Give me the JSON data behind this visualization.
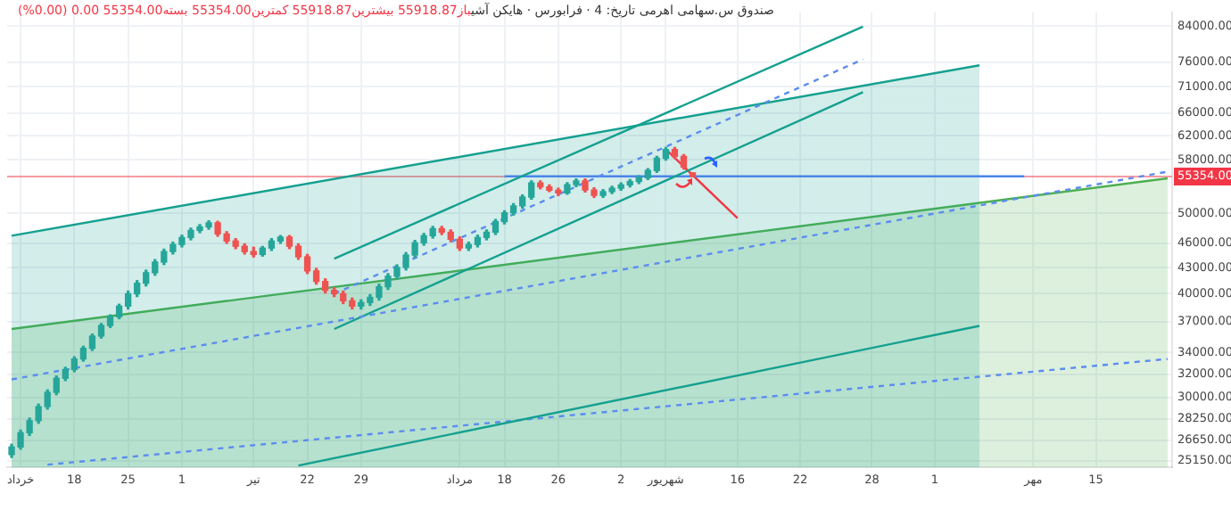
{
  "chart_data": {
    "type": "candlestick",
    "title": "صندوق س.سهامی اهرمی تاریخ: 4 · فرابورس · هایکن آشی",
    "subtitle": "باز55918.87 بیشترین55918.87 کمترین55354.00 بسته55354.00 0.00 (0.00%)",
    "categories": [
      null,
      "خرداد",
      null,
      null,
      null,
      null,
      null,
      "18",
      null,
      null,
      null,
      null,
      null,
      "25",
      null,
      null,
      null,
      null,
      null,
      "1",
      null,
      null,
      null,
      null,
      null,
      null,
      null,
      "تیر",
      null,
      null,
      null,
      null,
      null,
      "22",
      null,
      null,
      null,
      null,
      null,
      "29",
      null,
      null,
      null,
      null,
      null,
      null,
      null,
      null,
      null,
      null,
      "مرداد",
      null,
      null,
      null,
      null,
      "18",
      null,
      null,
      null,
      null,
      null,
      "26",
      null,
      null,
      null,
      null,
      null,
      null,
      "2",
      null,
      null,
      null,
      null,
      "شهریور",
      null,
      null,
      null,
      null,
      null,
      null,
      null,
      "16",
      null,
      null,
      null,
      null,
      null,
      null,
      "22",
      null,
      null,
      null,
      null,
      null,
      null,
      null,
      "28",
      null,
      null,
      null,
      null,
      null,
      null,
      "1",
      null,
      null,
      null,
      null,
      null,
      null,
      null,
      null,
      null,
      null,
      "مهر",
      null,
      null,
      null,
      null,
      null,
      null,
      "15",
      null,
      null,
      null,
      null,
      null,
      null,
      null,
      null
    ],
    "ohlc": [
      [
        25600,
        26350,
        25400,
        26150
      ],
      [
        26150,
        27400,
        26000,
        27200
      ],
      [
        27200,
        28330,
        27000,
        28130
      ],
      [
        28130,
        29450,
        27930,
        29250
      ],
      [
        29250,
        30630,
        29050,
        30430
      ],
      [
        30430,
        31840,
        30230,
        31640
      ],
      [
        31640,
        32620,
        31440,
        32420
      ],
      [
        32420,
        33580,
        32220,
        33380
      ],
      [
        33380,
        34580,
        33180,
        34380
      ],
      [
        34380,
        35770,
        34180,
        35570
      ],
      [
        35570,
        36830,
        35370,
        36630
      ],
      [
        36630,
        37720,
        36430,
        37520
      ],
      [
        37520,
        38850,
        37320,
        38650
      ],
      [
        38650,
        40290,
        38350,
        39990
      ],
      [
        39990,
        41480,
        39690,
        41180
      ],
      [
        41180,
        42700,
        40880,
        42400
      ],
      [
        42400,
        43970,
        42100,
        43670
      ],
      [
        43670,
        45260,
        43370,
        44960
      ],
      [
        44960,
        46150,
        44660,
        45850
      ],
      [
        45850,
        47050,
        45550,
        46750
      ],
      [
        46750,
        47980,
        46450,
        47680
      ],
      [
        47680,
        48440,
        47380,
        48140
      ],
      [
        48140,
        48970,
        47840,
        48700
      ],
      [
        48700,
        48900,
        46910,
        47210
      ],
      [
        47210,
        47510,
        46000,
        46300
      ],
      [
        46300,
        46600,
        45330,
        45630
      ],
      [
        45630,
        45930,
        44660,
        44960
      ],
      [
        44960,
        45500,
        44300,
        44600
      ],
      [
        44600,
        45600,
        44400,
        45400
      ],
      [
        45400,
        46600,
        45100,
        46300
      ],
      [
        46300,
        47000,
        46000,
        46800
      ],
      [
        46800,
        47000,
        45330,
        45630
      ],
      [
        45630,
        45930,
        44010,
        44310
      ],
      [
        44310,
        44610,
        42310,
        42610
      ],
      [
        42610,
        42910,
        41080,
        41380
      ],
      [
        41380,
        41680,
        40080,
        40380
      ],
      [
        40380,
        40680,
        39690,
        39990
      ],
      [
        39990,
        40290,
        38920,
        39220
      ],
      [
        39220,
        39520,
        38350,
        38650
      ],
      [
        38650,
        39330,
        38350,
        39030
      ],
      [
        39030,
        39900,
        38730,
        39600
      ],
      [
        39600,
        41080,
        39300,
        40780
      ],
      [
        40780,
        42290,
        40480,
        41990
      ],
      [
        41990,
        43330,
        41690,
        43030
      ],
      [
        43030,
        44830,
        42730,
        44530
      ],
      [
        44530,
        46370,
        44230,
        46070
      ],
      [
        46070,
        47280,
        45770,
        46980
      ],
      [
        46980,
        48210,
        46680,
        47910
      ],
      [
        47910,
        48210,
        47140,
        47440
      ],
      [
        47440,
        47740,
        46220,
        46520
      ],
      [
        46520,
        46820,
        45110,
        45410
      ],
      [
        45410,
        46150,
        45110,
        45850
      ],
      [
        45850,
        47050,
        45550,
        46750
      ],
      [
        46750,
        47740,
        46450,
        47440
      ],
      [
        47440,
        49160,
        47140,
        48860
      ],
      [
        48860,
        50360,
        48560,
        50060
      ],
      [
        50060,
        51340,
        49760,
        51040
      ],
      [
        51040,
        52600,
        50740,
        52300
      ],
      [
        52300,
        54690,
        52000,
        54390
      ],
      [
        54390,
        54690,
        53500,
        53800
      ],
      [
        53800,
        54100,
        53100,
        53300
      ],
      [
        53300,
        53600,
        52500,
        52900
      ],
      [
        52900,
        54420,
        52700,
        54120
      ],
      [
        54120,
        55000,
        53820,
        54700
      ],
      [
        54700,
        55000,
        53040,
        53340
      ],
      [
        53340,
        53640,
        52260,
        52560
      ],
      [
        52560,
        53400,
        52260,
        53100
      ],
      [
        53100,
        53900,
        52800,
        53600
      ],
      [
        53600,
        54400,
        53300,
        54100
      ],
      [
        54100,
        54900,
        53800,
        54600
      ],
      [
        54600,
        55490,
        54300,
        55190
      ],
      [
        55190,
        56590,
        54890,
        56290
      ],
      [
        56290,
        58540,
        55990,
        58240
      ],
      [
        58240,
        59990,
        57940,
        59690
      ],
      [
        59690,
        59990,
        58230,
        58530
      ],
      [
        58530,
        58830,
        56540,
        56840
      ],
      [
        55918.87,
        55918.87,
        55354,
        55354
      ],
      null,
      null,
      null,
      null,
      null,
      null,
      null,
      null,
      null,
      null,
      null,
      null,
      null,
      null,
      null,
      null,
      null,
      null,
      null,
      null,
      null,
      null,
      null,
      null,
      null,
      null,
      null,
      null,
      null,
      null,
      null,
      null,
      null,
      null,
      null,
      null,
      null,
      null,
      null,
      null,
      null,
      null,
      null,
      null,
      null,
      null,
      null,
      null,
      null,
      null,
      null,
      null,
      null
    ],
    "series": [
      {
        "type": "area",
        "color": "#14a08f",
        "values": [
          46980,
          null,
          null,
          null,
          null,
          null,
          null,
          null,
          null,
          null,
          null,
          null,
          null,
          null,
          null,
          null,
          null,
          null,
          null,
          null,
          null,
          null,
          null,
          null,
          null,
          null,
          null,
          null,
          null,
          null,
          null,
          null,
          null,
          null,
          null,
          null,
          null,
          null,
          null,
          null,
          null,
          null,
          null,
          null,
          null,
          null,
          null,
          null,
          null,
          null,
          null,
          null,
          null,
          null,
          null,
          null,
          null,
          null,
          null,
          null,
          null,
          null,
          null,
          null,
          null,
          null,
          null,
          null,
          null,
          null,
          null,
          null,
          null,
          null,
          null,
          null,
          null,
          null,
          null,
          null,
          null,
          null,
          null,
          null,
          null,
          null,
          null,
          null,
          null,
          null,
          null,
          null,
          null,
          null,
          null,
          null,
          null,
          null,
          null,
          null,
          null,
          null,
          null,
          null,
          null,
          null,
          null,
          null,
          75370,
          null,
          null,
          null,
          null,
          null,
          null,
          null,
          null,
          null,
          null,
          null,
          null,
          null,
          null,
          null,
          null,
          null,
          null,
          null,
          null,
          null
        ]
      },
      {
        "type": "area",
        "color": "#4caf50",
        "values": [
          36270,
          null,
          null,
          null,
          null,
          null,
          null,
          null,
          null,
          null,
          null,
          null,
          null,
          null,
          null,
          null,
          null,
          null,
          null,
          null,
          null,
          null,
          null,
          null,
          null,
          null,
          null,
          null,
          null,
          null,
          null,
          null,
          null,
          null,
          null,
          null,
          null,
          null,
          null,
          null,
          null,
          null,
          null,
          null,
          null,
          null,
          null,
          null,
          null,
          null,
          null,
          null,
          null,
          null,
          null,
          null,
          null,
          null,
          null,
          null,
          null,
          null,
          null,
          null,
          null,
          null,
          null,
          null,
          null,
          null,
          null,
          null,
          null,
          null,
          null,
          null,
          null,
          null,
          null,
          null,
          null,
          null,
          null,
          null,
          null,
          null,
          null,
          null,
          null,
          null,
          null,
          null,
          null,
          null,
          null,
          null,
          null,
          null,
          null,
          null,
          null,
          null,
          null,
          null,
          null,
          null,
          null,
          null,
          null,
          null,
          null,
          null,
          null,
          null,
          null,
          null,
          null,
          null,
          null,
          null,
          null,
          null,
          null,
          null,
          null,
          null,
          null,
          null,
          null,
          55090
        ]
      },
      {
        "type": "line",
        "color": "#14a08f",
        "values": [
          null,
          null,
          null,
          null,
          null,
          null,
          null,
          null,
          null,
          null,
          null,
          null,
          null,
          null,
          null,
          null,
          null,
          null,
          null,
          null,
          null,
          null,
          null,
          null,
          null,
          null,
          null,
          null,
          null,
          null,
          null,
          null,
          24840,
          null,
          null,
          null,
          null,
          null,
          null,
          null,
          null,
          null,
          null,
          null,
          null,
          null,
          null,
          null,
          null,
          null,
          null,
          null,
          null,
          null,
          null,
          null,
          null,
          null,
          null,
          null,
          null,
          null,
          null,
          null,
          null,
          null,
          null,
          null,
          null,
          null,
          null,
          null,
          null,
          null,
          null,
          null,
          null,
          null,
          null,
          null,
          null,
          null,
          null,
          null,
          null,
          null,
          null,
          null,
          null,
          null,
          null,
          null,
          null,
          null,
          null,
          null,
          null,
          null,
          null,
          null,
          null,
          null,
          null,
          null,
          null,
          null,
          null,
          null,
          36590,
          null,
          null,
          null,
          null,
          null,
          null,
          null,
          null,
          null,
          null,
          null,
          null,
          null,
          null,
          null,
          null,
          null,
          null,
          null,
          null,
          null
        ]
      },
      {
        "type": "line",
        "color": "#5b8def",
        "line_style": "dashed",
        "values": [
          31540,
          null,
          null,
          null,
          null,
          null,
          null,
          null,
          null,
          null,
          null,
          null,
          null,
          null,
          null,
          null,
          null,
          null,
          null,
          null,
          null,
          null,
          null,
          null,
          null,
          null,
          null,
          null,
          null,
          null,
          null,
          null,
          null,
          null,
          null,
          null,
          null,
          null,
          null,
          null,
          null,
          null,
          null,
          null,
          null,
          null,
          null,
          null,
          null,
          null,
          null,
          null,
          null,
          null,
          null,
          null,
          null,
          null,
          null,
          null,
          null,
          null,
          null,
          null,
          null,
          null,
          null,
          null,
          null,
          null,
          null,
          null,
          null,
          null,
          null,
          null,
          null,
          null,
          null,
          null,
          null,
          null,
          null,
          null,
          null,
          null,
          null,
          null,
          null,
          null,
          null,
          null,
          null,
          null,
          null,
          null,
          null,
          null,
          null,
          null,
          null,
          null,
          null,
          null,
          null,
          null,
          null,
          null,
          null,
          null,
          null,
          null,
          null,
          null,
          null,
          null,
          null,
          null,
          null,
          null,
          null,
          null,
          null,
          null,
          null,
          null,
          null,
          null,
          null,
          56120
        ]
      },
      {
        "type": "line",
        "color": "#5b8def",
        "line_style": "dashed",
        "values": [
          null,
          null,
          null,
          null,
          24900,
          null,
          null,
          null,
          null,
          null,
          null,
          null,
          null,
          null,
          null,
          null,
          null,
          null,
          null,
          null,
          null,
          null,
          null,
          null,
          null,
          null,
          null,
          null,
          null,
          null,
          null,
          null,
          null,
          null,
          null,
          null,
          null,
          null,
          null,
          null,
          null,
          null,
          null,
          null,
          null,
          null,
          null,
          null,
          null,
          null,
          null,
          null,
          null,
          null,
          null,
          null,
          null,
          null,
          null,
          null,
          null,
          null,
          null,
          null,
          null,
          null,
          null,
          null,
          null,
          null,
          null,
          null,
          null,
          null,
          null,
          null,
          null,
          null,
          null,
          null,
          null,
          null,
          null,
          null,
          null,
          null,
          null,
          null,
          null,
          null,
          null,
          null,
          null,
          null,
          null,
          null,
          null,
          null,
          null,
          null,
          null,
          null,
          null,
          null,
          null,
          null,
          null,
          null,
          null,
          null,
          null,
          null,
          null,
          null,
          null,
          null,
          null,
          null,
          null,
          null,
          null,
          null,
          null,
          null,
          null,
          null,
          null,
          null,
          null,
          33380
        ]
      },
      {
        "type": "line",
        "color": "#14a08f",
        "values": [
          null,
          null,
          null,
          null,
          null,
          null,
          null,
          null,
          null,
          null,
          null,
          null,
          null,
          null,
          null,
          null,
          null,
          null,
          null,
          null,
          null,
          null,
          null,
          null,
          null,
          null,
          null,
          null,
          null,
          null,
          null,
          null,
          null,
          null,
          null,
          null,
          44090,
          null,
          null,
          null,
          null,
          null,
          null,
          null,
          null,
          null,
          null,
          null,
          null,
          null,
          null,
          null,
          null,
          null,
          null,
          null,
          null,
          null,
          null,
          null,
          null,
          null,
          null,
          null,
          null,
          null,
          null,
          null,
          null,
          null,
          null,
          null,
          null,
          null,
          null,
          null,
          null,
          null,
          null,
          null,
          null,
          null,
          null,
          null,
          null,
          null,
          null,
          null,
          null,
          null,
          null,
          null,
          null,
          null,
          null,
          83900,
          null,
          null,
          null,
          null,
          null,
          null,
          null,
          null,
          null,
          null,
          null,
          null,
          null,
          null,
          null,
          null,
          null,
          null,
          null,
          null,
          null,
          null,
          null,
          null,
          null,
          null,
          null,
          null,
          null,
          null,
          null,
          null,
          null,
          null
        ]
      },
      {
        "type": "line",
        "color": "#14a08f",
        "values": [
          null,
          null,
          null,
          null,
          null,
          null,
          null,
          null,
          null,
          null,
          null,
          null,
          null,
          null,
          null,
          null,
          null,
          null,
          null,
          null,
          null,
          null,
          null,
          null,
          null,
          null,
          null,
          null,
          null,
          null,
          null,
          null,
          null,
          null,
          null,
          null,
          36270,
          null,
          null,
          null,
          null,
          null,
          null,
          null,
          null,
          null,
          null,
          null,
          null,
          null,
          null,
          null,
          null,
          null,
          null,
          null,
          null,
          null,
          null,
          null,
          null,
          null,
          null,
          null,
          null,
          null,
          null,
          null,
          null,
          null,
          null,
          null,
          null,
          null,
          null,
          null,
          null,
          null,
          null,
          null,
          null,
          null,
          null,
          null,
          null,
          null,
          null,
          null,
          null,
          null,
          null,
          null,
          null,
          null,
          null,
          69950,
          null,
          null,
          null,
          null,
          null,
          null,
          null,
          null,
          null,
          null,
          null,
          null,
          null,
          null,
          null,
          null,
          null,
          null,
          null,
          null,
          null,
          null,
          null,
          null,
          null,
          null,
          null,
          null,
          null,
          null,
          null,
          null,
          null,
          null
        ]
      },
      {
        "type": "line",
        "color": "#5b8def",
        "line_style": "dashed",
        "values": [
          null,
          null,
          null,
          null,
          null,
          null,
          null,
          null,
          null,
          null,
          null,
          null,
          null,
          null,
          null,
          null,
          null,
          null,
          null,
          null,
          null,
          null,
          null,
          null,
          null,
          null,
          null,
          null,
          null,
          null,
          null,
          null,
          null,
          null,
          null,
          null,
          39990,
          null,
          null,
          null,
          null,
          null,
          null,
          null,
          null,
          null,
          null,
          null,
          null,
          null,
          null,
          null,
          null,
          null,
          null,
          null,
          null,
          null,
          null,
          null,
          null,
          null,
          null,
          null,
          null,
          null,
          null,
          null,
          null,
          null,
          null,
          null,
          null,
          null,
          null,
          null,
          null,
          null,
          null,
          null,
          null,
          null,
          null,
          null,
          null,
          null,
          null,
          null,
          null,
          null,
          null,
          null,
          null,
          null,
          null,
          76630,
          null,
          null,
          null,
          null,
          null,
          null,
          null,
          null,
          null,
          null,
          null,
          null,
          null,
          null,
          null,
          null,
          null,
          null,
          null,
          null,
          null,
          null,
          null,
          null,
          null,
          null,
          null,
          null,
          null,
          null,
          null,
          null,
          null,
          null
        ]
      },
      {
        "type": "line",
        "color": "#4a86e8",
        "values": [
          null,
          null,
          null,
          null,
          null,
          null,
          null,
          null,
          null,
          null,
          null,
          null,
          null,
          null,
          null,
          null,
          null,
          null,
          null,
          null,
          null,
          null,
          null,
          null,
          null,
          null,
          null,
          null,
          null,
          null,
          null,
          null,
          null,
          null,
          null,
          null,
          null,
          null,
          null,
          null,
          null,
          null,
          null,
          null,
          null,
          null,
          null,
          null,
          null,
          null,
          null,
          null,
          null,
          null,
          null,
          55400,
          null,
          null,
          null,
          null,
          null,
          null,
          null,
          null,
          null,
          null,
          null,
          null,
          null,
          null,
          null,
          null,
          null,
          null,
          null,
          null,
          null,
          null,
          null,
          null,
          null,
          null,
          null,
          null,
          null,
          null,
          null,
          null,
          null,
          null,
          null,
          null,
          null,
          null,
          null,
          null,
          null,
          null,
          null,
          null,
          null,
          null,
          null,
          null,
          null,
          null,
          null,
          null,
          null,
          null,
          null,
          null,
          null,
          55400,
          null,
          null,
          null,
          null,
          null,
          null,
          null,
          null,
          null,
          null,
          null,
          null,
          null,
          null,
          null,
          null
        ]
      },
      {
        "type": "line",
        "color": "#f23645",
        "values": [
          null,
          null,
          null,
          null,
          null,
          null,
          null,
          null,
          null,
          null,
          null,
          null,
          null,
          null,
          null,
          null,
          null,
          null,
          null,
          null,
          null,
          null,
          null,
          null,
          null,
          null,
          null,
          null,
          null,
          null,
          null,
          null,
          null,
          null,
          null,
          null,
          null,
          null,
          null,
          null,
          null,
          null,
          null,
          null,
          null,
          null,
          null,
          null,
          null,
          null,
          null,
          null,
          null,
          null,
          null,
          null,
          null,
          null,
          null,
          null,
          null,
          null,
          null,
          null,
          null,
          null,
          null,
          null,
          null,
          null,
          null,
          null,
          null,
          59700,
          null,
          null,
          null,
          null,
          null,
          null,
          null,
          49330,
          null,
          null,
          null,
          null,
          null,
          null,
          null,
          null,
          null,
          null,
          null,
          null,
          null,
          null,
          null,
          null,
          null,
          null,
          null,
          null,
          null,
          null,
          null,
          null,
          null,
          null,
          null,
          null,
          null,
          null,
          null,
          null,
          null,
          null,
          null,
          null,
          null,
          null,
          null,
          null,
          null,
          null,
          null,
          null,
          null,
          null,
          null,
          null
        ]
      }
    ],
    "ylim": [
      24700,
      87300
    ],
    "log": true,
    "yticks": [
      {
        "value": 84000,
        "label": "84000.00"
      },
      {
        "value": 76000,
        "label": "76000.00"
      },
      {
        "value": 71000,
        "label": "71000.00"
      },
      {
        "value": 66000,
        "label": "66000.00"
      },
      {
        "value": 62000,
        "label": "62000.00"
      },
      {
        "value": 58000,
        "label": "58000.00"
      },
      {
        "value": 50000,
        "label": "50000.00"
      },
      {
        "value": 46000,
        "label": "46000.00"
      },
      {
        "value": 43000,
        "label": "43000.00"
      },
      {
        "value": 40000,
        "label": "40000.00"
      },
      {
        "value": 37000,
        "label": "37000.00"
      },
      {
        "value": 34000,
        "label": "34000.00"
      },
      {
        "value": 32000,
        "label": "32000.00"
      },
      {
        "value": 30000,
        "label": "30000.00"
      },
      {
        "value": 28250,
        "label": "28250.00"
      },
      {
        "value": 26650,
        "label": "26650.00"
      },
      {
        "value": 25150,
        "label": "25150.00"
      }
    ],
    "ref_lines": [
      {
        "axis": "y",
        "value": 55354,
        "label": "55354.00",
        "color": "#f23645"
      }
    ],
    "grid": true,
    "legend": false,
    "marker": "none"
  }
}
